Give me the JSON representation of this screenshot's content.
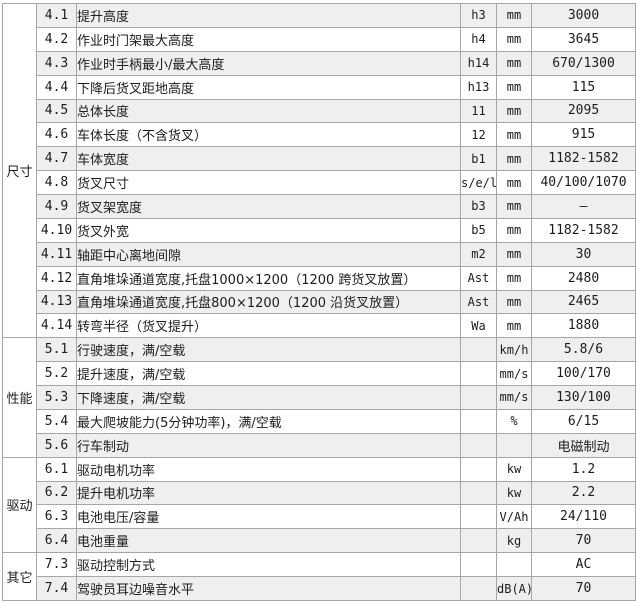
{
  "colors": {
    "stripe_row_bg": "#efefef",
    "plain_row_bg": "#ffffff",
    "grid_line": "#a6a6a6",
    "text": "#1c1c1c"
  },
  "table": {
    "columns": [
      "category",
      "row-number",
      "description",
      "symbol",
      "unit",
      "value"
    ],
    "sections": [
      {
        "id": "dimensions",
        "category": "尺寸",
        "rows": [
          {
            "no": "4.1",
            "desc": "提升高度",
            "sym": "h3",
            "unit": "mm",
            "value": "3000"
          },
          {
            "no": "4.2",
            "desc": "作业时门架最大高度",
            "sym": "h4",
            "unit": "mm",
            "value": "3645"
          },
          {
            "no": "4.3",
            "desc": "作业时手柄最小/最大高度",
            "sym": "h14",
            "unit": "mm",
            "value": "670/1300"
          },
          {
            "no": "4.4",
            "desc": "下降后货叉距地高度",
            "sym": "h13",
            "unit": "mm",
            "value": "115"
          },
          {
            "no": "4.5",
            "desc": "总体长度",
            "sym": "11",
            "unit": "mm",
            "value": "2095"
          },
          {
            "no": "4.6",
            "desc": "车体长度（不含货叉）",
            "sym": "12",
            "unit": "mm",
            "value": "915"
          },
          {
            "no": "4.7",
            "desc": "车体宽度",
            "sym": "b1",
            "unit": "mm",
            "value": "1182-1582"
          },
          {
            "no": "4.8",
            "desc": "货叉尺寸",
            "sym": "s/e/l",
            "unit": "mm",
            "value": "40/100/1070"
          },
          {
            "no": "4.9",
            "desc": "货叉架宽度",
            "sym": "b3",
            "unit": "mm",
            "value": "–"
          },
          {
            "no": "4.10",
            "desc": "货叉外宽",
            "sym": "b5",
            "unit": "mm",
            "value": "1182-1582"
          },
          {
            "no": "4.11",
            "desc": "轴距中心离地间隙",
            "sym": "m2",
            "unit": "mm",
            "value": "30"
          },
          {
            "no": "4.12",
            "desc": "直角堆垛通道宽度,托盘1000×1200（1200 跨货叉放置）",
            "sym": "Ast",
            "unit": "mm",
            "value": "2480"
          },
          {
            "no": "4.13",
            "desc": "直角堆垛通道宽度,托盘800×1200（1200 沿货叉放置）",
            "sym": "Ast",
            "unit": "mm",
            "value": "2465"
          },
          {
            "no": "4.14",
            "desc": "转弯半径（货叉提升）",
            "sym": "Wa",
            "unit": "mm",
            "value": "1880"
          }
        ]
      },
      {
        "id": "performance",
        "category": "性能",
        "rows": [
          {
            "no": "5.1",
            "desc": "行驶速度，满/空载",
            "sym": "",
            "unit": "km/h",
            "value": "5.8/6"
          },
          {
            "no": "5.2",
            "desc": "提升速度，满/空载",
            "sym": "",
            "unit": "mm/s",
            "value": "100/170"
          },
          {
            "no": "5.3",
            "desc": "下降速度，满/空载",
            "sym": "",
            "unit": "mm/s",
            "value": "130/100"
          },
          {
            "no": "5.4",
            "desc": "最大爬坡能力(5分钟功率)，满/空载",
            "sym": "",
            "unit": "%",
            "value": "6/15"
          },
          {
            "no": "5.6",
            "desc": "行车制动",
            "sym": "",
            "unit": "",
            "value": "电磁制动"
          }
        ]
      },
      {
        "id": "drive",
        "category": "驱动",
        "rows": [
          {
            "no": "6.1",
            "desc": "驱动电机功率",
            "sym": "",
            "unit": "kw",
            "value": "1.2"
          },
          {
            "no": "6.2",
            "desc": "提升电机功率",
            "sym": "",
            "unit": "kw",
            "value": "2.2"
          },
          {
            "no": "6.3",
            "desc": "电池电压/容量",
            "sym": "",
            "unit": "V/Ah",
            "value": "24/110"
          },
          {
            "no": "6.4",
            "desc": "电池重量",
            "sym": "",
            "unit": "kg",
            "value": "70"
          }
        ]
      },
      {
        "id": "other",
        "category": "其它",
        "rows": [
          {
            "no": "7.3",
            "desc": "驱动控制方式",
            "sym": "",
            "unit": "",
            "value": "AC"
          },
          {
            "no": "7.4",
            "desc": "驾驶员耳边噪音水平",
            "sym": "",
            "unit": "dB(A)",
            "value": "70"
          }
        ]
      }
    ]
  }
}
